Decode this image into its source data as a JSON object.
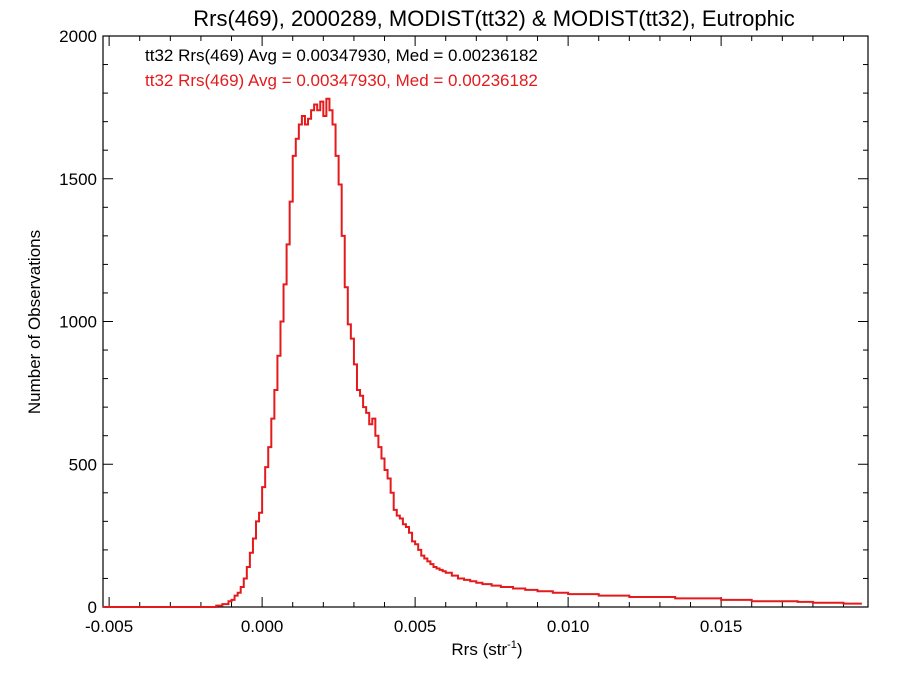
{
  "chart_data": {
    "type": "line",
    "title": "Rrs(469), 2000289, MODIST(tt32) & MODIST(tt32), Eutrophic",
    "xlabel": "Rrs (str",
    "xlabel_sup": "-1",
    "xlabel_suffix": ")",
    "ylabel": "Number of Observations",
    "xlim": [
      -0.0052,
      0.0198
    ],
    "ylim": [
      0,
      2000
    ],
    "xticks": [
      -0.005,
      0.0,
      0.005,
      0.01,
      0.015
    ],
    "xtick_labels": [
      "-0.005",
      "0.000",
      "0.005",
      "0.010",
      "0.015"
    ],
    "yticks": [
      0,
      500,
      1000,
      1500,
      2000
    ],
    "ytick_labels": [
      "0",
      "500",
      "1000",
      "1500",
      "2000"
    ],
    "step": true,
    "bin_width": 0.0001,
    "legend_placement": "top-left",
    "legend": [
      {
        "text": "tt32 Rrs(469) Avg = 0.00347930, Med = 0.00236182",
        "color": "#000000"
      },
      {
        "text": "tt32 Rrs(469) Avg = 0.00347930, Med = 0.00236182",
        "color": "#e41a1c"
      }
    ],
    "series": [
      {
        "color": "#e41a1c",
        "x": [
          -0.0052,
          -0.0015,
          -0.0013,
          -0.0011,
          -0.001,
          -0.0009,
          -0.0008,
          -0.0007,
          -0.0006,
          -0.0005,
          -0.0004,
          -0.0003,
          -0.0002,
          -0.0001,
          0.0,
          0.0001,
          0.0002,
          0.0003,
          0.0004,
          0.0005,
          0.0006,
          0.0007,
          0.0008,
          0.0009,
          0.001,
          0.0011,
          0.0012,
          0.0013,
          0.0014,
          0.0015,
          0.0016,
          0.0017,
          0.0018,
          0.0019,
          0.002,
          0.0021,
          0.0022,
          0.0023,
          0.0024,
          0.0025,
          0.0026,
          0.0027,
          0.0028,
          0.0029,
          0.003,
          0.0031,
          0.0032,
          0.0033,
          0.0034,
          0.0035,
          0.0036,
          0.0037,
          0.0038,
          0.0039,
          0.004,
          0.0041,
          0.0042,
          0.0043,
          0.0044,
          0.0045,
          0.0046,
          0.0047,
          0.0048,
          0.0049,
          0.005,
          0.0051,
          0.0052,
          0.0053,
          0.0054,
          0.0055,
          0.0056,
          0.0057,
          0.0058,
          0.0059,
          0.006,
          0.0062,
          0.0064,
          0.0066,
          0.0068,
          0.007,
          0.0072,
          0.0075,
          0.0078,
          0.0082,
          0.0086,
          0.009,
          0.0095,
          0.01,
          0.0105,
          0.011,
          0.0115,
          0.012,
          0.0125,
          0.013,
          0.0135,
          0.014,
          0.0145,
          0.015,
          0.0155,
          0.016,
          0.0165,
          0.017,
          0.0175,
          0.018,
          0.0185,
          0.019,
          0.0195
        ],
        "y": [
          0,
          5,
          10,
          20,
          25,
          40,
          50,
          70,
          100,
          140,
          190,
          240,
          300,
          330,
          420,
          490,
          560,
          660,
          760,
          880,
          1000,
          1130,
          1270,
          1420,
          1580,
          1640,
          1690,
          1720,
          1690,
          1710,
          1740,
          1760,
          1740,
          1770,
          1720,
          1780,
          1740,
          1690,
          1580,
          1480,
          1300,
          1120,
          990,
          940,
          850,
          760,
          740,
          700,
          680,
          640,
          660,
          600,
          560,
          520,
          480,
          450,
          400,
          340,
          320,
          310,
          290,
          280,
          260,
          230,
          220,
          200,
          180,
          170,
          160,
          150,
          140,
          135,
          130,
          125,
          120,
          110,
          100,
          95,
          90,
          85,
          80,
          75,
          70,
          65,
          60,
          55,
          50,
          45,
          45,
          40,
          40,
          35,
          35,
          35,
          30,
          30,
          30,
          25,
          25,
          20,
          20,
          20,
          18,
          15,
          15,
          12,
          12
        ]
      }
    ]
  }
}
